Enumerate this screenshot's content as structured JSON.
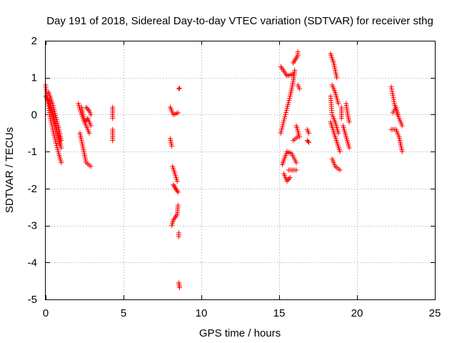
{
  "chart_data": {
    "type": "scatter",
    "title": "Day 191 of 2018, Sidereal Day-to-day VTEC variation (SDTVAR) for receiver sthg",
    "xlabel": "GPS time / hours",
    "ylabel": "SDTVAR / TECUs",
    "xlim": [
      0,
      25
    ],
    "ylim": [
      -5,
      2
    ],
    "xticks": [
      "0",
      "5",
      "10",
      "15",
      "20",
      "25"
    ],
    "yticks": [
      "-5",
      "-4",
      "-3",
      "-2",
      "-1",
      "0",
      "1",
      "2"
    ],
    "grid": true,
    "marker": "+",
    "color": "#ff0000",
    "segments": [
      [
        0.0,
        0.8,
        0.25,
        0.0,
        0.5,
        -0.5,
        0.8,
        -1.0,
        1.0,
        -1.3
      ],
      [
        0.0,
        0.5,
        0.3,
        0.3,
        0.6,
        -0.2,
        0.9,
        -0.8
      ],
      [
        0.1,
        0.4,
        0.4,
        0.1,
        0.7,
        -0.4,
        1.0,
        -0.9
      ],
      [
        0.2,
        0.6,
        0.5,
        0.2,
        0.8,
        -0.3,
        1.0,
        -0.7
      ],
      [
        2.1,
        0.3,
        2.3,
        0.0,
        2.6,
        -0.3,
        2.8,
        -0.5
      ],
      [
        2.2,
        -0.5,
        2.4,
        -0.9,
        2.6,
        -1.3,
        2.9,
        -1.4
      ],
      [
        2.3,
        0.2,
        2.5,
        -0.2,
        2.7,
        -0.1,
        2.9,
        -0.3
      ],
      [
        2.6,
        0.2,
        2.8,
        0.1,
        2.9,
        0.0
      ],
      [
        4.3,
        0.2,
        4.3,
        -0.1
      ],
      [
        4.3,
        -0.4,
        4.3,
        -0.7
      ],
      [
        8.0,
        0.2,
        8.2,
        0.0,
        8.5,
        0.05
      ],
      [
        8.0,
        -0.65,
        8.1,
        -0.85
      ],
      [
        8.15,
        -1.4,
        8.3,
        -1.6,
        8.45,
        -1.8
      ],
      [
        8.2,
        -1.9,
        8.35,
        -2.0,
        8.5,
        -2.1
      ],
      [
        8.5,
        -2.45,
        8.45,
        -2.7,
        8.2,
        -2.85,
        8.1,
        -3.0
      ],
      [
        8.55,
        -3.2,
        8.55,
        -3.3
      ],
      [
        8.55,
        0.7,
        8.6,
        0.72
      ],
      [
        8.55,
        -4.55,
        8.6,
        -4.68
      ],
      [
        15.1,
        1.3,
        15.5,
        1.05,
        15.9,
        1.1
      ],
      [
        15.2,
        -1.35,
        15.5,
        -1.0,
        15.8,
        -1.05,
        16.1,
        -1.3
      ],
      [
        15.3,
        -1.6,
        15.5,
        -1.8,
        15.7,
        -1.7
      ],
      [
        15.1,
        -0.5,
        15.4,
        0.0,
        15.7,
        0.5,
        15.9,
        0.9,
        16.0,
        1.2
      ],
      [
        15.9,
        1.4,
        16.2,
        1.6,
        16.2,
        1.7
      ],
      [
        15.6,
        -1.5,
        15.9,
        -1.5,
        16.1,
        -1.5
      ],
      [
        16.1,
        -0.3,
        16.3,
        -0.6
      ],
      [
        16.2,
        0.8,
        16.3,
        0.7
      ],
      [
        16.8,
        -0.4,
        16.9,
        -0.5
      ],
      [
        16.8,
        -0.7,
        16.9,
        -0.75
      ],
      [
        15.9,
        -0.7,
        16.2,
        -0.6
      ],
      [
        18.3,
        1.65,
        18.5,
        1.4,
        18.7,
        1.0
      ],
      [
        18.3,
        0.5,
        18.4,
        0.0,
        18.6,
        -0.2,
        18.8,
        -0.5
      ],
      [
        18.3,
        -0.2,
        18.6,
        -0.6,
        18.9,
        -1.0
      ],
      [
        18.4,
        -1.2,
        18.6,
        -1.4,
        18.9,
        -1.5
      ],
      [
        18.4,
        0.8,
        18.6,
        0.6,
        18.8,
        0.3
      ],
      [
        19.1,
        -0.3,
        19.3,
        -0.6,
        19.5,
        -0.9
      ],
      [
        19.3,
        0.3,
        19.4,
        0.0,
        19.5,
        -0.2
      ],
      [
        19.0,
        0.2,
        19.0,
        -0.1
      ],
      [
        22.2,
        0.75,
        22.4,
        0.3,
        22.6,
        0.0
      ],
      [
        22.2,
        -0.4,
        22.5,
        -0.4,
        22.7,
        -0.6,
        22.9,
        -1.0
      ],
      [
        22.3,
        0.05,
        22.5,
        0.2,
        22.7,
        -0.1,
        22.9,
        -0.3
      ]
    ]
  }
}
